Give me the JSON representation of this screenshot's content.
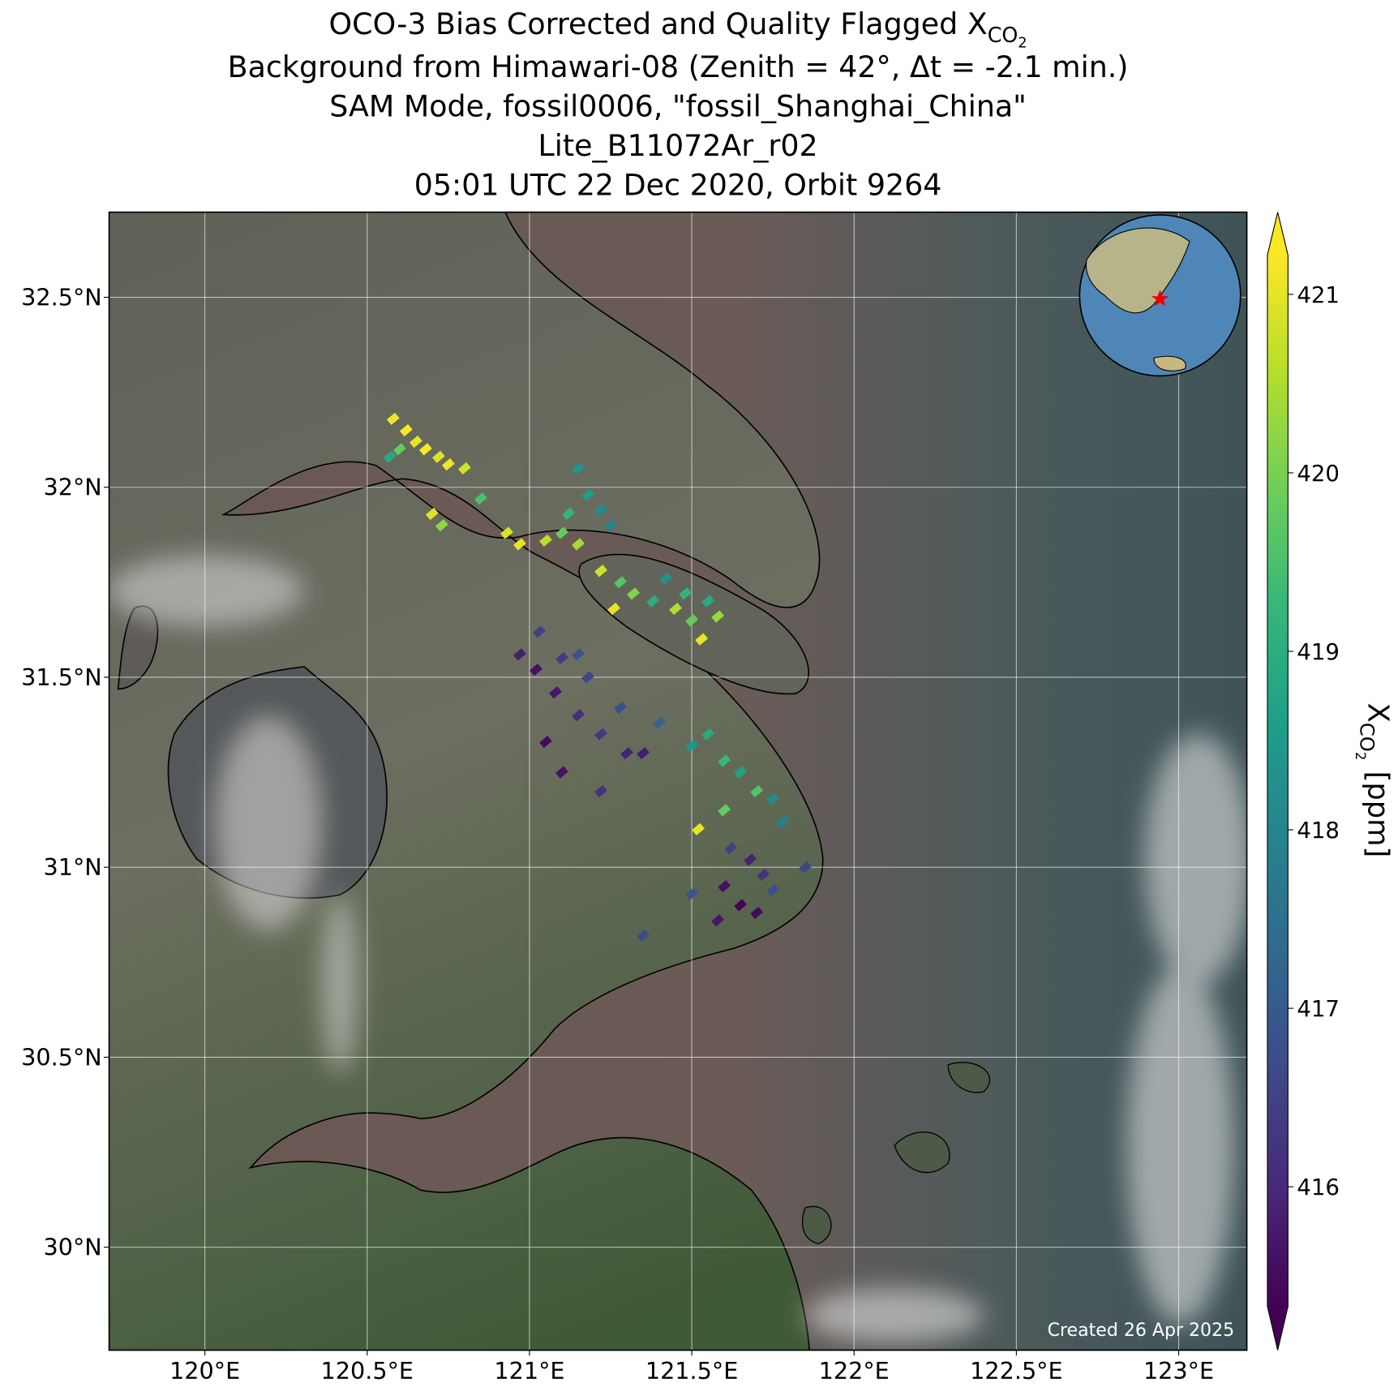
{
  "chart_data": {
    "type": "scatter",
    "title": {
      "prefix": "OCO-3 Bias Corrected and Quality Flagged X",
      "subscript": "CO",
      "sub_subscript": "2"
    },
    "subtitle_lines": [
      "Background from Himawari-08 (Zenith = 42°, Δt = -2.1 min.)",
      "SAM Mode, fossil0006, \"fossil_Shanghai_China\"",
      "Lite_B11072Ar_r02",
      "05:01 UTC 22 Dec 2020, Orbit 9264"
    ],
    "annotation": "Created 26 Apr 2025",
    "xlim": [
      119.705,
      123.21
    ],
    "ylim": [
      29.729,
      32.724
    ],
    "xticks": [
      {
        "value": 120,
        "label": "120°E"
      },
      {
        "value": 120.5,
        "label": "120.5°E"
      },
      {
        "value": 121,
        "label": "121°E"
      },
      {
        "value": 121.5,
        "label": "121.5°E"
      },
      {
        "value": 122,
        "label": "122°E"
      },
      {
        "value": 122.5,
        "label": "122.5°E"
      },
      {
        "value": 123,
        "label": "123°E"
      }
    ],
    "yticks": [
      {
        "value": 30,
        "label": "30°N"
      },
      {
        "value": 30.5,
        "label": "30.5°N"
      },
      {
        "value": 31,
        "label": "31°N"
      },
      {
        "value": 31.5,
        "label": "31.5°N"
      },
      {
        "value": 32,
        "label": "32°N"
      },
      {
        "value": 32.5,
        "label": "32.5°N"
      }
    ],
    "grid": true,
    "colorbar": {
      "label": {
        "base": "X",
        "subscript": "CO",
        "sub_subscript": "2",
        "unit": "[ppm]"
      },
      "clim": [
        415.33,
        421.22
      ],
      "ticks": [
        416,
        417,
        418,
        419,
        420,
        421
      ],
      "extend": "both",
      "colors": [
        "#440154",
        "#482878",
        "#3e4989",
        "#31688e",
        "#26828e",
        "#1f9e89",
        "#35b779",
        "#6ece58",
        "#b5de2b",
        "#fde725"
      ]
    },
    "lon": [
      120.58,
      120.62,
      120.65,
      120.6,
      120.68,
      120.72,
      120.75,
      120.57,
      120.8,
      120.7,
      120.73,
      120.85,
      120.93,
      120.97,
      121.05,
      121.1,
      121.12,
      121.15,
      121.18,
      121.22,
      121.25,
      121.15,
      121.22,
      121.28,
      121.32,
      121.26,
      121.38,
      121.42,
      121.45,
      121.5,
      121.53,
      121.48,
      121.58,
      121.55,
      121.03,
      120.97,
      121.02,
      121.1,
      121.15,
      121.18,
      121.08,
      121.15,
      121.22,
      121.28,
      121.3,
      121.05,
      121.1,
      121.22,
      121.35,
      121.4,
      121.5,
      121.55,
      121.6,
      121.65,
      121.7,
      121.75,
      121.78,
      121.52,
      121.6,
      121.62,
      121.68,
      121.72,
      121.6,
      121.65,
      121.7,
      121.58,
      121.75,
      121.85,
      121.5,
      121.35
    ],
    "lat": [
      32.18,
      32.15,
      32.12,
      32.1,
      32.1,
      32.08,
      32.06,
      32.08,
      32.05,
      31.93,
      31.9,
      31.97,
      31.88,
      31.85,
      31.86,
      31.88,
      31.93,
      31.85,
      31.98,
      31.94,
      31.9,
      32.05,
      31.78,
      31.75,
      31.72,
      31.68,
      31.7,
      31.76,
      31.68,
      31.65,
      31.6,
      31.72,
      31.66,
      31.7,
      31.62,
      31.56,
      31.52,
      31.55,
      31.56,
      31.5,
      31.46,
      31.4,
      31.35,
      31.42,
      31.3,
      31.33,
      31.25,
      31.2,
      31.3,
      31.38,
      31.32,
      31.35,
      31.28,
      31.25,
      31.2,
      31.18,
      31.12,
      31.1,
      31.15,
      31.05,
      31.02,
      30.98,
      30.95,
      30.9,
      30.88,
      30.86,
      30.94,
      31.0,
      30.93,
      30.82
    ],
    "values": [
      421.1,
      421.2,
      421.0,
      419.8,
      421.2,
      420.9,
      421.1,
      418.9,
      420.8,
      420.9,
      420.2,
      419.5,
      420.9,
      421.0,
      420.6,
      419.8,
      419.2,
      420.4,
      418.6,
      418.2,
      418.0,
      418.4,
      420.8,
      419.6,
      420.1,
      421.0,
      419.0,
      418.3,
      420.5,
      419.8,
      421.0,
      419.2,
      420.3,
      418.9,
      416.5,
      415.8,
      415.6,
      416.4,
      416.9,
      416.6,
      415.7,
      416.1,
      416.3,
      416.8,
      415.9,
      415.5,
      415.6,
      416.2,
      415.8,
      417.2,
      418.4,
      418.9,
      419.3,
      418.7,
      419.6,
      418.2,
      417.9,
      421.0,
      419.8,
      416.5,
      415.9,
      416.2,
      415.6,
      415.4,
      415.5,
      415.7,
      416.8,
      416.6,
      416.9,
      416.7
    ]
  }
}
